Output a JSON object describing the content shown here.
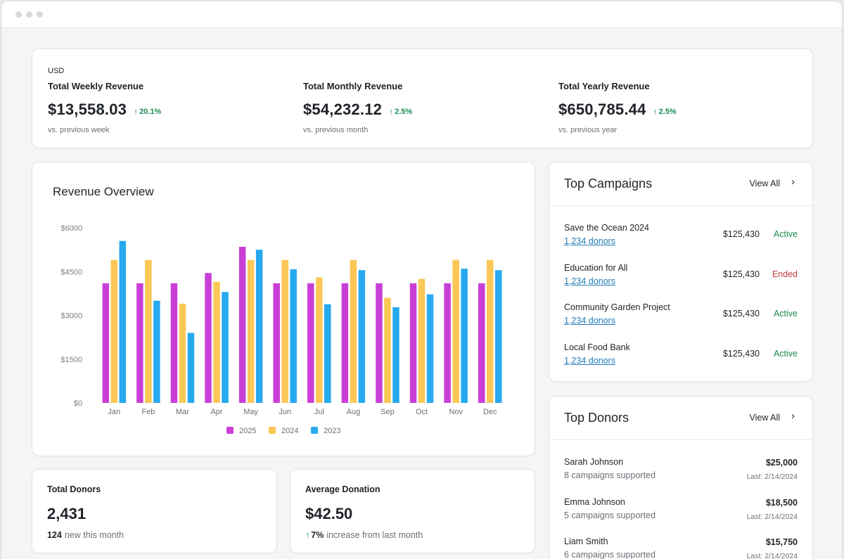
{
  "summary": {
    "currency": "USD",
    "stats": [
      {
        "label": "Total Weekly Revenue",
        "value": "$13,558.03",
        "change": "20.1%",
        "sub": "vs. previous week"
      },
      {
        "label": "Total Monthly Revenue",
        "value": "$54,232.12",
        "change": "2.5%",
        "sub": "vs. previous month"
      },
      {
        "label": "Total Yearly Revenue",
        "value": "$650,785.44",
        "change": "2.5%",
        "sub": "vs. previous year"
      }
    ]
  },
  "chart": {
    "title": "Revenue Overview"
  },
  "chart_data": {
    "type": "bar",
    "categories": [
      "Jan",
      "Feb",
      "Mar",
      "Apr",
      "May",
      "Jun",
      "Jul",
      "Aug",
      "Sep",
      "Oct",
      "Nov",
      "Dec"
    ],
    "series": [
      {
        "name": "2025",
        "color": "#c93fd6",
        "values": [
          4100,
          4100,
          4100,
          4450,
          5350,
          4100,
          4100,
          4100,
          4100,
          4100,
          4100,
          4100
        ]
      },
      {
        "name": "2024",
        "color": "#fbc756",
        "values": [
          4900,
          4900,
          3400,
          4150,
          4900,
          4900,
          4300,
          4900,
          3600,
          4250,
          4900,
          4900
        ]
      },
      {
        "name": "2023",
        "color": "#26a9ef",
        "values": [
          5550,
          3500,
          2400,
          3800,
          5250,
          4580,
          3380,
          4550,
          3280,
          3720,
          4600,
          4550
        ]
      }
    ],
    "yticks": [
      "$6000",
      "$4500",
      "$3000",
      "$1500",
      "$0"
    ],
    "ylim": [
      0,
      6000
    ],
    "legend": "bottom",
    "grid": false
  },
  "donors_stat": {
    "label": "Total Donors",
    "value": "2,431",
    "sub_bold": "124",
    "sub": "new this month"
  },
  "avg_stat": {
    "label": "Average Donation",
    "value": "$42.50",
    "sub_bold": "7%",
    "sub": "increase from last month"
  },
  "campaigns": {
    "title": "Top Campaigns",
    "view_all": "View All",
    "items": [
      {
        "name": "Save the Ocean 2024",
        "donors": "1,234 donors",
        "amount": "$125,430",
        "status": "Active"
      },
      {
        "name": "Education for All",
        "donors": "1,234 donors",
        "amount": "$125,430",
        "status": "Ended"
      },
      {
        "name": "Community Garden Project",
        "donors": "1,234 donors",
        "amount": "$125,430",
        "status": "Active"
      },
      {
        "name": "Local Food Bank",
        "donors": "1,234 donors",
        "amount": "$125,430",
        "status": "Active"
      }
    ]
  },
  "donors": {
    "title": "Top Donors",
    "view_all": "View All",
    "items": [
      {
        "name": "Sarah Johnson",
        "meta": "8 campaigns supported",
        "amount": "$25,000",
        "last": "Last: 2/14/2024"
      },
      {
        "name": "Emma Johnson",
        "meta": "5 campaigns supported",
        "amount": "$18,500",
        "last": "Last: 2/14/2024"
      },
      {
        "name": "Liam Smith",
        "meta": "6 campaigns supported",
        "amount": "$15,750",
        "last": "Last: 2/14/2024"
      }
    ]
  },
  "colors": {
    "accent_green": "#1a8a4e",
    "ended_red": "#c43d3d",
    "link_blue": "#1f7bb6"
  },
  "icons": {
    "trend": "arrow-up-icon",
    "chevron": "chevron-right-icon"
  }
}
